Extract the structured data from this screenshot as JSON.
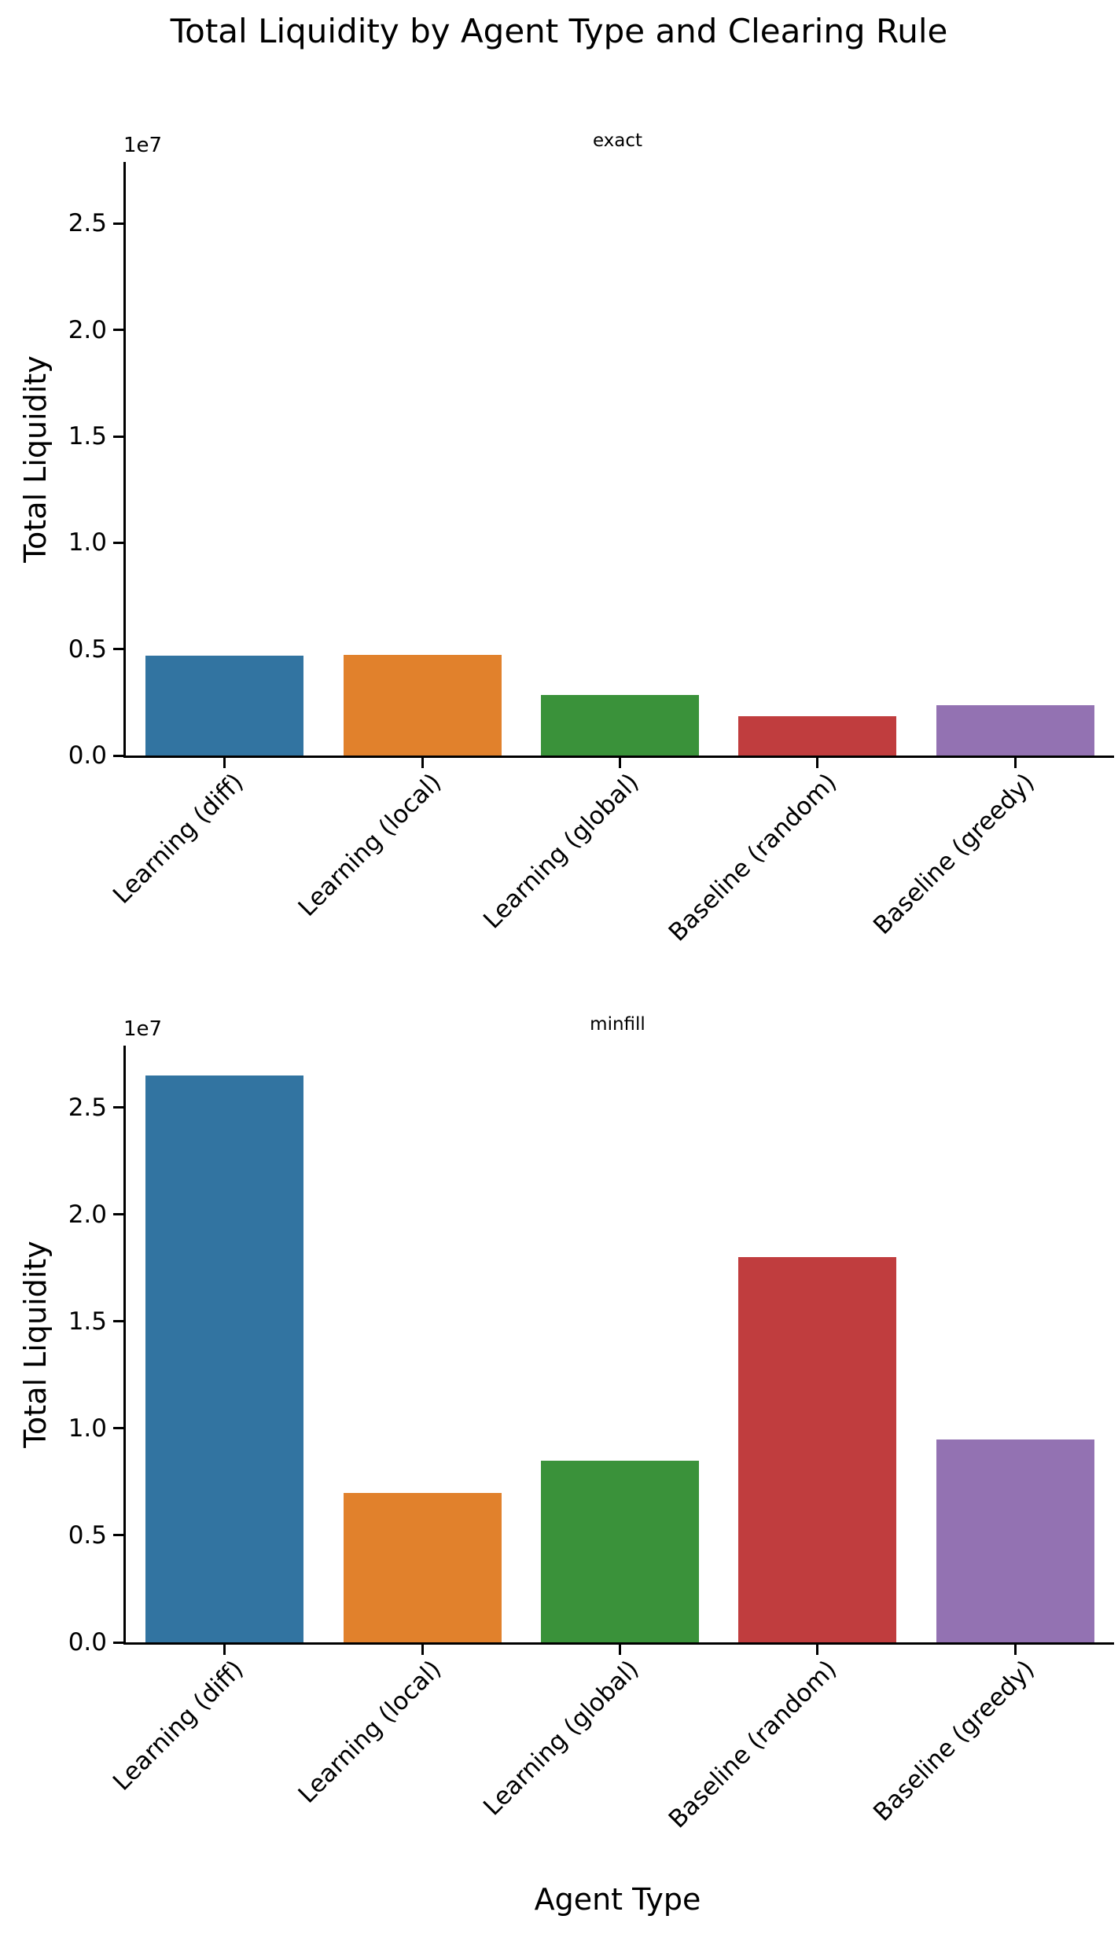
{
  "suptitle": "Total Liquidity by Agent Type and Clearing Rule",
  "xlabel": "Agent Type",
  "ylabel": "Total Liquidity",
  "palette": {
    "blue": "#3274a1",
    "orange": "#e1812c",
    "green": "#3a923a",
    "red": "#c03d3e",
    "purple": "#9372b2"
  },
  "chart_data": [
    {
      "type": "bar",
      "facet": "exact",
      "title": "exact",
      "categories": [
        "Learning (diff)",
        "Learning (local)",
        "Learning (global)",
        "Baseline (random)",
        "Baseline (greedy)"
      ],
      "values": [
        4700000,
        4720000,
        2850000,
        1850000,
        2350000
      ],
      "bar_colors": [
        "#3274a1",
        "#e1812c",
        "#3a923a",
        "#c03d3e",
        "#9372b2"
      ],
      "xlabel": "",
      "ylabel": "Total Liquidity",
      "ylim": [
        0,
        27900000
      ],
      "yticks": [
        0,
        5000000,
        10000000,
        15000000,
        20000000,
        25000000
      ],
      "ytick_labels": [
        "0.0",
        "0.5",
        "1.0",
        "1.5",
        "2.0",
        "2.5"
      ],
      "offset_text": "1e7",
      "grid": false,
      "legend": null
    },
    {
      "type": "bar",
      "facet": "minfill",
      "title": "minfill",
      "categories": [
        "Learning (diff)",
        "Learning (local)",
        "Learning (global)",
        "Baseline (random)",
        "Baseline (greedy)"
      ],
      "values": [
        26500000,
        7000000,
        8500000,
        18000000,
        9500000
      ],
      "bar_colors": [
        "#3274a1",
        "#e1812c",
        "#3a923a",
        "#c03d3e",
        "#9372b2"
      ],
      "xlabel": "Agent Type",
      "ylabel": "Total Liquidity",
      "ylim": [
        0,
        27900000
      ],
      "yticks": [
        0,
        5000000,
        10000000,
        15000000,
        20000000,
        25000000
      ],
      "ytick_labels": [
        "0.0",
        "0.5",
        "1.0",
        "1.5",
        "2.0",
        "2.5"
      ],
      "offset_text": "1e7",
      "grid": false,
      "legend": null
    }
  ]
}
